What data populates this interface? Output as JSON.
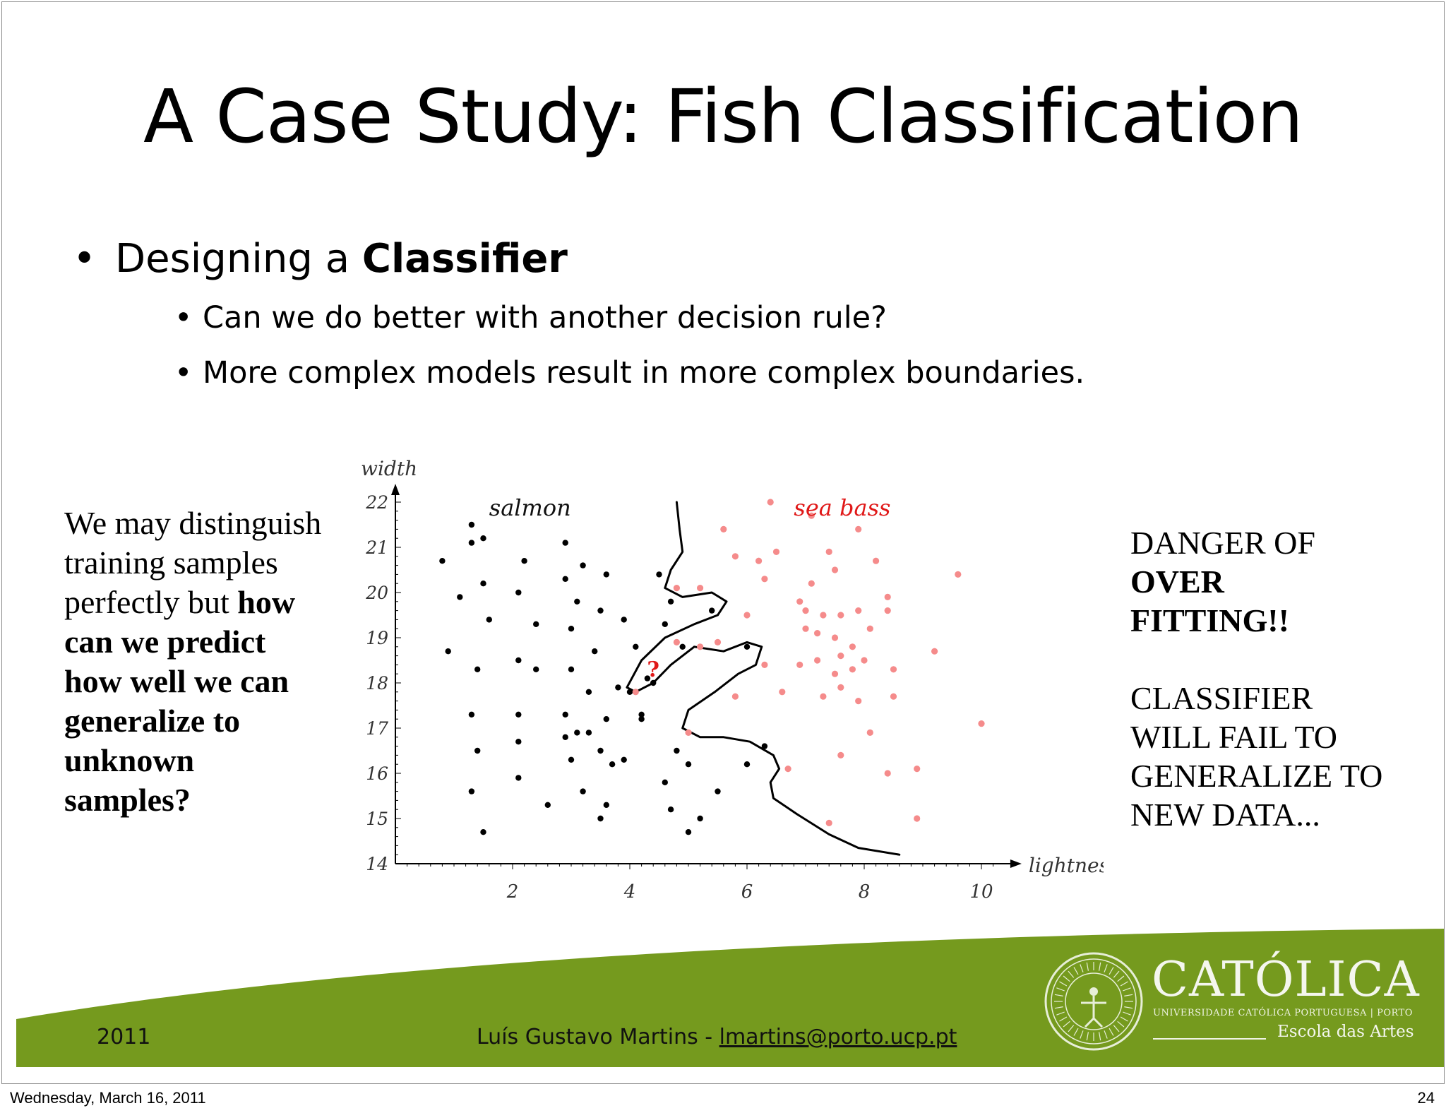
{
  "slide": {
    "title": "A Case Study: Fish Classification",
    "bullet": {
      "prefix": "Designing a ",
      "bold": "Classifier"
    },
    "subbullets": [
      "Can we do better with another decision rule?",
      "More complex models result in more complex boundaries."
    ],
    "left_note": {
      "plain": "We may distinguish training samples perfectly but ",
      "bold": "how can we predict how well we can generalize to unknown samples?"
    },
    "right_note": {
      "line1": "DANGER OF",
      "bold": "OVER FITTING!!",
      "line2": "CLASSIFIER WILL FAIL TO GENERALIZE TO NEW DATA..."
    }
  },
  "footer": {
    "year": "2011",
    "author": "Luís Gustavo Martins - ",
    "email": "lmartins@porto.ucp.pt",
    "logo_name": "CATÓLICA",
    "logo_sub": "UNIVERSIDADE CATÓLICA PORTUGUESA | PORTO",
    "logo_school": "Escola das Artes",
    "green": "#759a1e"
  },
  "page_footer": {
    "date": "Wednesday, March 16, 2011",
    "page": "24"
  },
  "chart_data": {
    "type": "scatter",
    "xlabel": "lightness",
    "ylabel": "width",
    "xlim": [
      0,
      10.3
    ],
    "ylim": [
      14,
      22
    ],
    "xticks": [
      2,
      4,
      6,
      8,
      10
    ],
    "yticks": [
      14,
      15,
      16,
      17,
      18,
      19,
      20,
      21,
      22
    ],
    "annotations": [
      "salmon",
      "sea bass",
      "?"
    ],
    "series": [
      {
        "name": "salmon",
        "color": "#000000",
        "points": [
          [
            1.3,
            21.5
          ],
          [
            1.3,
            21.1
          ],
          [
            1.5,
            21.2
          ],
          [
            0.8,
            20.7
          ],
          [
            1.1,
            19.9
          ],
          [
            2.2,
            20.7
          ],
          [
            1.5,
            20.2
          ],
          [
            1.6,
            19.4
          ],
          [
            2.1,
            20.0
          ],
          [
            2.4,
            19.3
          ],
          [
            2.9,
            20.3
          ],
          [
            2.9,
            21.1
          ],
          [
            3.2,
            20.6
          ],
          [
            3.6,
            20.4
          ],
          [
            3.1,
            19.8
          ],
          [
            3.5,
            19.6
          ],
          [
            3.0,
            19.2
          ],
          [
            3.4,
            18.7
          ],
          [
            3.9,
            19.4
          ],
          [
            0.9,
            18.7
          ],
          [
            1.4,
            18.3
          ],
          [
            2.1,
            18.5
          ],
          [
            2.4,
            18.3
          ],
          [
            3.0,
            18.3
          ],
          [
            3.3,
            17.8
          ],
          [
            3.8,
            17.9
          ],
          [
            4.1,
            18.8
          ],
          [
            4.3,
            18.1
          ],
          [
            4.5,
            20.4
          ],
          [
            4.7,
            19.8
          ],
          [
            4.6,
            19.3
          ],
          [
            4.9,
            18.8
          ],
          [
            4.0,
            17.8
          ],
          [
            4.2,
            17.3
          ],
          [
            4.4,
            18.0
          ],
          [
            1.3,
            17.3
          ],
          [
            2.1,
            17.3
          ],
          [
            2.9,
            17.3
          ],
          [
            3.6,
            17.2
          ],
          [
            3.3,
            16.9
          ],
          [
            3.1,
            16.9
          ],
          [
            2.9,
            16.8
          ],
          [
            4.2,
            17.2
          ],
          [
            1.4,
            16.5
          ],
          [
            2.1,
            16.7
          ],
          [
            3.5,
            16.5
          ],
          [
            3.0,
            16.3
          ],
          [
            3.7,
            16.2
          ],
          [
            3.9,
            16.3
          ],
          [
            4.8,
            16.5
          ],
          [
            5.0,
            16.2
          ],
          [
            2.1,
            15.9
          ],
          [
            4.6,
            15.8
          ],
          [
            1.3,
            15.6
          ],
          [
            3.2,
            15.6
          ],
          [
            2.6,
            15.3
          ],
          [
            3.6,
            15.3
          ],
          [
            4.7,
            15.2
          ],
          [
            1.5,
            14.7
          ],
          [
            3.5,
            15.0
          ],
          [
            5.0,
            14.7
          ],
          [
            5.2,
            15.0
          ],
          [
            6.3,
            16.6
          ],
          [
            6.0,
            16.2
          ],
          [
            5.5,
            15.6
          ],
          [
            5.4,
            19.6
          ],
          [
            6.0,
            18.8
          ]
        ]
      },
      {
        "name": "sea bass",
        "color": "#f58b8b",
        "points": [
          [
            6.4,
            22.0
          ],
          [
            7.1,
            21.7
          ],
          [
            5.6,
            21.4
          ],
          [
            7.9,
            21.4
          ],
          [
            6.5,
            20.9
          ],
          [
            7.4,
            20.9
          ],
          [
            5.8,
            20.8
          ],
          [
            6.2,
            20.7
          ],
          [
            7.5,
            20.5
          ],
          [
            8.2,
            20.7
          ],
          [
            6.3,
            20.3
          ],
          [
            7.1,
            20.2
          ],
          [
            9.6,
            20.4
          ],
          [
            4.8,
            20.1
          ],
          [
            5.2,
            20.1
          ],
          [
            8.4,
            19.9
          ],
          [
            6.9,
            19.8
          ],
          [
            7.0,
            19.6
          ],
          [
            7.3,
            19.5
          ],
          [
            7.6,
            19.5
          ],
          [
            7.9,
            19.6
          ],
          [
            8.4,
            19.6
          ],
          [
            6.0,
            19.5
          ],
          [
            7.0,
            19.2
          ],
          [
            7.2,
            19.1
          ],
          [
            7.5,
            19.0
          ],
          [
            8.1,
            19.2
          ],
          [
            7.8,
            18.8
          ],
          [
            4.8,
            18.9
          ],
          [
            5.2,
            18.8
          ],
          [
            5.5,
            18.9
          ],
          [
            6.3,
            18.4
          ],
          [
            6.9,
            18.4
          ],
          [
            7.2,
            18.5
          ],
          [
            7.6,
            18.6
          ],
          [
            8.0,
            18.5
          ],
          [
            7.5,
            18.2
          ],
          [
            7.8,
            18.3
          ],
          [
            8.5,
            18.3
          ],
          [
            9.2,
            18.7
          ],
          [
            6.6,
            17.8
          ],
          [
            7.3,
            17.7
          ],
          [
            7.6,
            17.9
          ],
          [
            7.9,
            17.6
          ],
          [
            8.5,
            17.7
          ],
          [
            5.8,
            17.7
          ],
          [
            4.1,
            17.8
          ],
          [
            5.0,
            16.9
          ],
          [
            8.1,
            16.9
          ],
          [
            7.6,
            16.4
          ],
          [
            6.7,
            16.1
          ],
          [
            8.4,
            16.0
          ],
          [
            8.9,
            16.1
          ],
          [
            10.0,
            17.1
          ],
          [
            7.4,
            14.9
          ],
          [
            8.9,
            15.0
          ]
        ]
      }
    ],
    "unknown_point": [
      4.4,
      18.3
    ],
    "decision_boundary": "wiggly curve separating salmon (left) from sea bass (right)"
  }
}
